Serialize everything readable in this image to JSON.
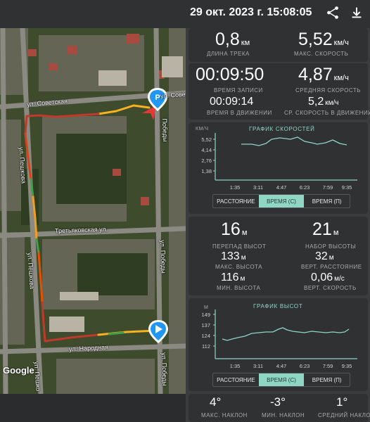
{
  "header": {
    "title": "29 окт. 2023 г. 15:08:05",
    "share_icon": "share-icon",
    "download_icon": "download-icon"
  },
  "map": {
    "streets": {
      "sovetskaya": "ул. Советская",
      "sovet_right": "ул. Совет",
      "pobedy_top": "Победы",
      "peshkova_top": "ул. Пешкова",
      "tretyakovskaya": "Третьяковская ул.",
      "pobedy_mid": "ул. Победы",
      "peshkova_mid": "ул. Пешкова",
      "narodnaya": "ул. Народная",
      "pobedy_bottom": "ул. Победы",
      "peshkova_bottom": "ул. Пешко"
    },
    "attribution": "Google"
  },
  "stats_top": {
    "distance_value": "0,8",
    "distance_unit": "км",
    "distance_label": "ДЛИНА ТРЕКА",
    "max_speed_value": "5,52",
    "max_speed_unit": "км/ч",
    "max_speed_label": "МАКС. СКОРОСТЬ",
    "record_time_value": "00:09:50",
    "record_time_label": "ВРЕМЯ ЗАПИСИ",
    "avg_speed_value": "4,87",
    "avg_speed_unit": "км/ч",
    "avg_speed_label": "СРЕДНЯЯ СКОРОСТЬ",
    "moving_time_value": "00:09:14",
    "moving_time_label": "ВРЕМЯ В ДВИЖЕНИИ",
    "avg_moving_speed_value": "5,2",
    "avg_moving_speed_unit": "км/ч",
    "avg_moving_speed_label": "СР. СКОРОСТЬ В ДВИЖЕНИИ"
  },
  "speed_chart": {
    "title": "ГРАФИК СКОРОСТЕЙ",
    "unit": "км/ч",
    "y_ticks": [
      "5,52",
      "4,14",
      "2,76",
      "1,38"
    ],
    "x_ticks": [
      "1:35",
      "3:11",
      "4:47",
      "6:23",
      "7:59",
      "9:35"
    ],
    "buttons": [
      "РАССТОЯНИЕ",
      "ВРЕМЯ (С)",
      "ВРЕМЯ (П)"
    ]
  },
  "stats_mid": {
    "elev_diff_value": "16",
    "elev_diff_unit": "м",
    "elev_diff_label": "ПЕРЕПАД ВЫСОТ",
    "elev_gain_value": "21",
    "elev_gain_unit": "м",
    "elev_gain_label": "НАБОР ВЫСОТЫ",
    "max_alt_value": "133",
    "max_alt_unit": "м",
    "max_alt_label": "МАКС. ВЫСОТА",
    "vert_dist_value": "32",
    "vert_dist_unit": "м",
    "vert_dist_label": "ВЕРТ. РАССТОЯНИЕ",
    "min_alt_value": "116",
    "min_alt_unit": "м",
    "min_alt_label": "МИН. ВЫСОТА",
    "vert_speed_value": "0,06",
    "vert_speed_unit": "м/с",
    "vert_speed_label": "ВЕРТ. СКОРОСТЬ"
  },
  "alt_chart": {
    "title": "ГРАФИК ВЫСОТ",
    "unit": "м",
    "y_ticks": [
      "149",
      "137",
      "124",
      "112"
    ],
    "x_ticks": [
      "1:35",
      "3:11",
      "4:47",
      "6:23",
      "7:59",
      "9:35"
    ],
    "buttons": [
      "РАССТОЯНИЕ",
      "ВРЕМЯ (С)",
      "ВРЕМЯ (П)"
    ]
  },
  "stats_bottom": {
    "max_slope_value": "4°",
    "max_slope_label": "МАКС. НАКЛОН",
    "min_slope_value": "-3°",
    "min_slope_label": "МИН. НАКЛОН",
    "avg_slope_value": "1°",
    "avg_slope_label": "СРЕДНИЙ НАКЛОН"
  },
  "colors": {
    "accent": "#8fd6c4",
    "background": "#2f3133",
    "pin": "#2196f3",
    "arrow": "#e53935"
  }
}
